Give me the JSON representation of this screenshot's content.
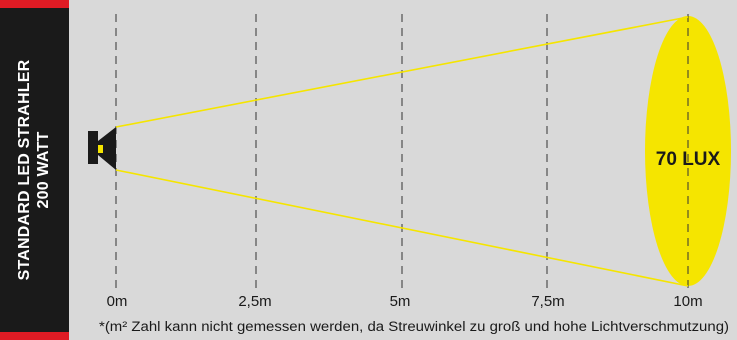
{
  "title": {
    "line1": "STANDARD LED STRAHLER",
    "line2": "200 WATT"
  },
  "distance_labels": [
    "0m",
    "2,5m",
    "5m",
    "7,5m",
    "10m"
  ],
  "illuminance_label": "70 LUX",
  "footnote": "*(m² Zahl kann nicht gemessen werden, da Streuwinkel zu groß und hohe Lichtverschmutzung)",
  "colors": {
    "side_bar": "#1a1a1a",
    "accent_red": "#e01b24",
    "panel": "#d9d9d9",
    "beam": "#f5e500",
    "spot": "#f5e500"
  }
}
